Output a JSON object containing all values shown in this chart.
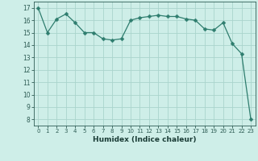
{
  "x_values": [
    0,
    1,
    2,
    3,
    4,
    5,
    6,
    7,
    8,
    9,
    10,
    11,
    12,
    13,
    14,
    15,
    16,
    17,
    18,
    19,
    20,
    21,
    22,
    23
  ],
  "y_values": [
    17.0,
    15.0,
    16.1,
    16.5,
    15.8,
    15.0,
    15.0,
    14.5,
    14.4,
    14.5,
    16.0,
    16.2,
    16.3,
    16.4,
    16.3,
    16.3,
    16.1,
    16.0,
    15.3,
    15.2,
    15.8,
    14.1,
    13.3,
    8.0
  ],
  "xlabel": "Humidex (Indice chaleur)",
  "line_color": "#2e7d6e",
  "marker": "D",
  "marker_size": 2.5,
  "background_color": "#ceeee8",
  "grid_color": "#aad4cc",
  "tick_color": "#2e5c54",
  "text_color": "#1a3c36",
  "ylim": [
    7.5,
    17.5
  ],
  "xlim": [
    -0.5,
    23.5
  ],
  "yticks": [
    8,
    9,
    10,
    11,
    12,
    13,
    14,
    15,
    16,
    17
  ],
  "xticks": [
    0,
    1,
    2,
    3,
    4,
    5,
    6,
    7,
    8,
    9,
    10,
    11,
    12,
    13,
    14,
    15,
    16,
    17,
    18,
    19,
    20,
    21,
    22,
    23
  ]
}
